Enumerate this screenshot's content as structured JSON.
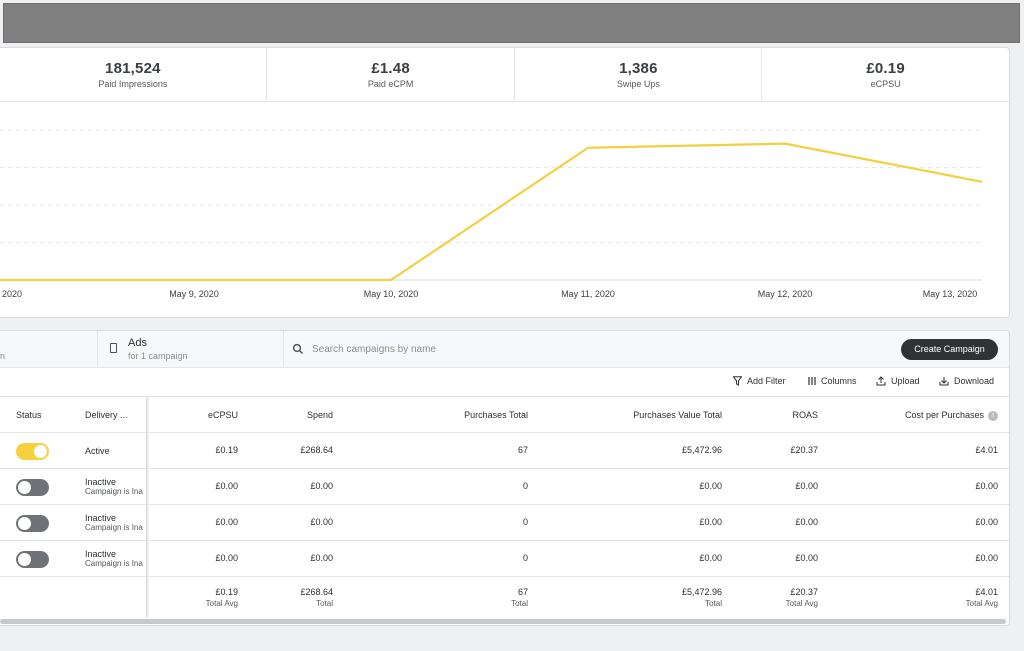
{
  "stats": [
    {
      "value": "181,524",
      "label": "Paid Impressions"
    },
    {
      "value": "£1.48",
      "label": "Paid eCPM"
    },
    {
      "value": "1,386",
      "label": "Swipe Ups"
    },
    {
      "value": "£0.19",
      "label": "eCPSU"
    }
  ],
  "chart_data": {
    "type": "line",
    "title": "",
    "xlabel": "",
    "ylabel": "",
    "x": [
      "2020",
      "May 9, 2020",
      "May 10, 2020",
      "May 11, 2020",
      "May 12, 2020",
      "May 13, 2020"
    ],
    "series": [
      {
        "values": [
          0,
          0,
          0,
          0.97,
          1.0,
          0.72
        ]
      }
    ],
    "ylim": [
      0,
      1.1
    ],
    "grid": true,
    "color": "#f2d03f"
  },
  "tabs": {
    "campaigns_sub": "n",
    "ads_title": "Ads",
    "ads_sub": "for 1 campaign"
  },
  "search": {
    "placeholder": "Search campaigns by name"
  },
  "create_button": "Create Campaign",
  "toolbar": {
    "add_filter": "Add Filter",
    "columns": "Columns",
    "upload": "Upload",
    "download": "Download"
  },
  "columns": {
    "status": "Status",
    "delivery": "Delivery ...",
    "ecpsu": "eCPSU",
    "spend": "Spend",
    "purchases_total": "Purchases Total",
    "purchases_value_total": "Purchases Value Total",
    "roas": "ROAS",
    "cost_per_purchases": "Cost per Purchases"
  },
  "rows": [
    {
      "status_on": true,
      "delivery": "Active",
      "delivery_sub": "",
      "ecpsu": "£0.19",
      "spend": "£268.64",
      "purchases_total": "67",
      "purchases_value_total": "£5,472.96",
      "roas": "£20.37",
      "cost_per_purchases": "£4.01"
    },
    {
      "status_on": false,
      "delivery": "Inactive",
      "delivery_sub": "Campaign is Ina",
      "ecpsu": "£0.00",
      "spend": "£0.00",
      "purchases_total": "0",
      "purchases_value_total": "£0.00",
      "roas": "£0.00",
      "cost_per_purchases": "£0.00"
    },
    {
      "status_on": false,
      "delivery": "Inactive",
      "delivery_sub": "Campaign is Ina",
      "ecpsu": "£0.00",
      "spend": "£0.00",
      "purchases_total": "0",
      "purchases_value_total": "£0.00",
      "roas": "£0.00",
      "cost_per_purchases": "£0.00"
    },
    {
      "status_on": false,
      "delivery": "Inactive",
      "delivery_sub": "Campaign is Ina",
      "ecpsu": "£0.00",
      "spend": "£0.00",
      "purchases_total": "0",
      "purchases_value_total": "£0.00",
      "roas": "£0.00",
      "cost_per_purchases": "£0.00"
    }
  ],
  "totals": {
    "ecpsu": {
      "value": "£0.19",
      "label": "Total Avg"
    },
    "spend": {
      "value": "£268.64",
      "label": "Total"
    },
    "purchases_total": {
      "value": "67",
      "label": "Total"
    },
    "purchases_value_total": {
      "value": "£5,472.96",
      "label": "Total"
    },
    "roas": {
      "value": "£20.37",
      "label": "Total Avg"
    },
    "cost_per_purchases": {
      "value": "£4.01",
      "label": "Total Avg"
    }
  }
}
